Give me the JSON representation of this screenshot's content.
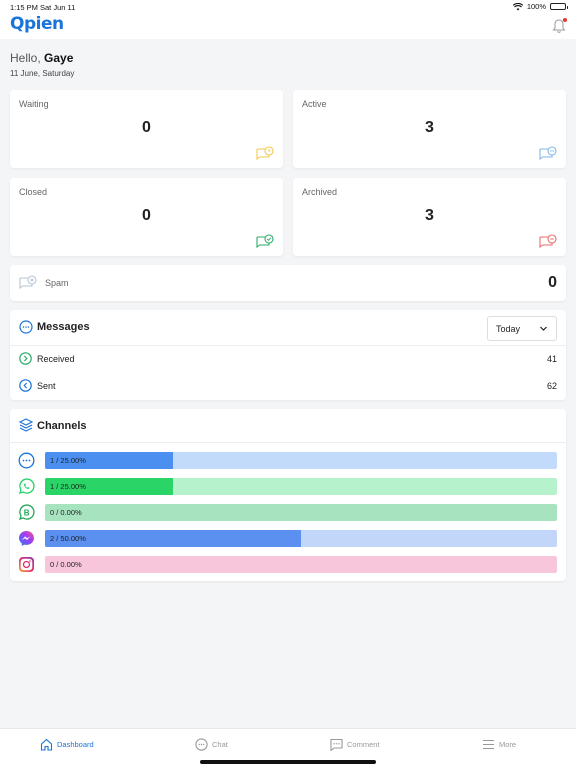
{
  "status_bar": {
    "time": "1:15 PM",
    "date": "Sat Jun 11",
    "battery": "100%",
    "battery_level": 1.0
  },
  "header": {
    "logo": "Qpien",
    "notification_icon": "bell-icon"
  },
  "greeting": {
    "hello": "Hello,",
    "name": "Gaye",
    "date": "11 June, Saturday"
  },
  "stats": {
    "waiting": {
      "label": "Waiting",
      "value": "0",
      "icon": "chat-clock-icon",
      "color": "#f2c94c"
    },
    "active": {
      "label": "Active",
      "value": "3",
      "icon": "chat-dots-icon",
      "color": "#7fb8ea"
    },
    "closed": {
      "label": "Closed",
      "value": "0",
      "icon": "chat-check-icon",
      "color": "#2eaa6b"
    },
    "archived": {
      "label": "Archived",
      "value": "3",
      "icon": "chat-minus-icon",
      "color": "#eb6b6b"
    }
  },
  "spam": {
    "label": "Spam",
    "value": "0",
    "icon": "chat-x-icon"
  },
  "messages": {
    "title": "Messages",
    "filter": "Today",
    "received": {
      "label": "Received",
      "value": "41"
    },
    "sent": {
      "label": "Sent",
      "value": "62"
    }
  },
  "channels": {
    "title": "Channels",
    "items": [
      {
        "icon": "webchat-icon",
        "label": "1 / 25.00%",
        "fraction": 0.25,
        "fill": "#4b8ff0",
        "track": "#c2dbfa",
        "accent": "#1b74d9"
      },
      {
        "icon": "whatsapp-icon",
        "label": "1 / 25.00%",
        "fraction": 0.25,
        "fill": "#2bd467",
        "track": "#b6f2cc",
        "accent": "#25d366"
      },
      {
        "icon": "whatsapp-business-icon",
        "label": "0 / 0.00%",
        "fraction": 0,
        "fill": "#2bbf6c",
        "track": "#a8e3c0",
        "accent": "#25a857"
      },
      {
        "icon": "messenger-icon",
        "label": "2 / 50.00%",
        "fraction": 0.5,
        "fill": "#5b8ff0",
        "track": "#c2d6fa",
        "accent": "#7b4ef0"
      },
      {
        "icon": "instagram-icon",
        "label": "0 / 0.00%",
        "fraction": 0,
        "fill": "#f3a6c6",
        "track": "#f8c6db",
        "accent": "#e1306c"
      }
    ]
  },
  "tabbar": {
    "dashboard": "Dashboard",
    "chat": "Chat",
    "comment": "Comment",
    "more": "More"
  }
}
